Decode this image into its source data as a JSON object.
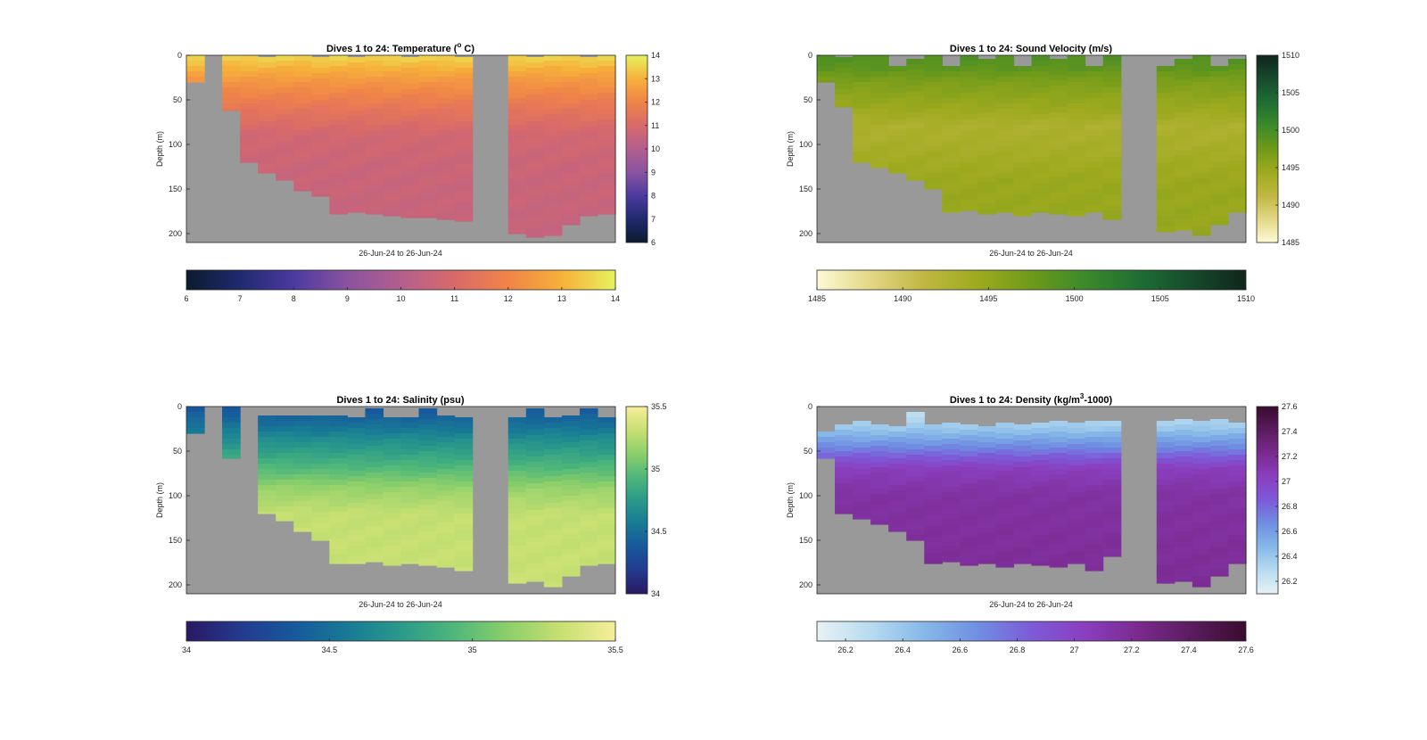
{
  "chart_data": [
    {
      "type": "heatmap",
      "title": "Dives 1 to 24: Temperature (",
      "title_sup": "o",
      "title_tail": " C)",
      "xlabel": "26-Jun-24 to 26-Jun-24",
      "ylabel": "Depth (m)",
      "ylim": [
        0,
        210
      ],
      "yticks": [
        "0",
        "50",
        "100",
        "150",
        "200"
      ],
      "colorbar_range": [
        6,
        14
      ],
      "colorbar_ticks": [
        "6",
        "7",
        "8",
        "9",
        "10",
        "11",
        "12",
        "13",
        "14"
      ],
      "colormap": [
        "#0b1b2d",
        "#1f2a6e",
        "#4b3aa0",
        "#8a53a0",
        "#b35f8e",
        "#d8696a",
        "#f08448",
        "#f7b03a",
        "#e6f25f"
      ],
      "missing_color": "#999999",
      "dives": 24,
      "max_depth_by_dive": [
        30,
        0,
        62,
        120,
        132,
        140,
        152,
        158,
        178,
        176,
        178,
        180,
        182,
        182,
        184,
        186,
        0,
        0,
        200,
        204,
        202,
        190,
        180,
        178
      ],
      "surface_gap_by_dive": [
        0,
        0,
        0,
        0,
        2,
        0,
        0,
        2,
        0,
        2,
        0,
        0,
        2,
        0,
        0,
        2,
        0,
        0,
        0,
        2,
        0,
        0,
        2,
        0
      ],
      "profile": [
        [
          0,
          13.6
        ],
        [
          10,
          13.2
        ],
        [
          30,
          12.4
        ],
        [
          60,
          11.5
        ],
        [
          90,
          10.8
        ],
        [
          130,
          10.6
        ],
        [
          205,
          10.5
        ]
      ]
    },
    {
      "type": "heatmap",
      "title": "Dives 1 to 24: Sound Velocity (m/s)",
      "xlabel": "26-Jun-24 to 26-Jun-24",
      "ylabel": "Depth (m)",
      "ylim": [
        0,
        210
      ],
      "yticks": [
        "0",
        "50",
        "100",
        "150",
        "200"
      ],
      "colorbar_range": [
        1485,
        1510
      ],
      "colorbar_ticks": [
        "1485",
        "1490",
        "1495",
        "1500",
        "1505",
        "1510"
      ],
      "colormap": [
        "#fdf9d6",
        "#e3d786",
        "#bfb741",
        "#9eaa1e",
        "#6e9a1a",
        "#3c8a2a",
        "#1f6e34",
        "#164a2c",
        "#0f261b"
      ],
      "missing_color": "#999999",
      "dives": 24,
      "max_depth_by_dive": [
        30,
        58,
        120,
        126,
        132,
        140,
        150,
        176,
        174,
        178,
        176,
        180,
        176,
        178,
        180,
        176,
        184,
        0,
        0,
        198,
        196,
        202,
        190,
        176
      ],
      "surface_gap_by_dive": [
        0,
        2,
        0,
        0,
        12,
        4,
        0,
        12,
        0,
        4,
        0,
        12,
        0,
        4,
        0,
        12,
        0,
        0,
        0,
        12,
        4,
        0,
        12,
        4
      ],
      "profile": [
        [
          0,
          1499.5
        ],
        [
          15,
          1498.5
        ],
        [
          30,
          1496.5
        ],
        [
          60,
          1494.5
        ],
        [
          80,
          1493.0
        ],
        [
          100,
          1493.4
        ],
        [
          140,
          1494.6
        ],
        [
          205,
          1495.0
        ]
      ]
    },
    {
      "type": "heatmap",
      "title": "Dives 1 to 24: Salinity (psu)",
      "xlabel": "26-Jun-24 to 26-Jun-24",
      "ylabel": "Depth (m)",
      "ylim": [
        0,
        210
      ],
      "yticks": [
        "0",
        "50",
        "100",
        "150",
        "200"
      ],
      "colorbar_range": [
        34,
        35.5
      ],
      "colorbar_ticks": [
        "34",
        "34.5",
        "35",
        "35.5"
      ],
      "colormap": [
        "#2a1862",
        "#233a8f",
        "#17589c",
        "#187a96",
        "#2a9a8a",
        "#4fb77a",
        "#8ccf6a",
        "#c8e072",
        "#f6ee9a"
      ],
      "missing_color": "#999999",
      "dives": 24,
      "max_depth_by_dive": [
        30,
        0,
        58,
        0,
        120,
        128,
        140,
        150,
        176,
        176,
        174,
        178,
        176,
        178,
        180,
        184,
        0,
        0,
        198,
        196,
        202,
        190,
        178,
        176
      ],
      "surface_gap_by_dive": [
        0,
        2,
        0,
        0,
        10,
        10,
        10,
        10,
        10,
        12,
        2,
        12,
        12,
        2,
        10,
        12,
        0,
        0,
        12,
        2,
        12,
        10,
        2,
        12
      ],
      "profile": [
        [
          0,
          34.35
        ],
        [
          20,
          34.5
        ],
        [
          40,
          34.7
        ],
        [
          70,
          34.95
        ],
        [
          90,
          35.15
        ],
        [
          120,
          35.3
        ],
        [
          205,
          35.32
        ]
      ]
    },
    {
      "type": "heatmap",
      "title": "Dives 1 to 24: Density (kg/m",
      "title_sup": "3",
      "title_tail": "-1000)",
      "xlabel": "26-Jun-24 to 26-Jun-24",
      "ylabel": "Depth (m)",
      "ylim": [
        0,
        210
      ],
      "yticks": [
        "0",
        "50",
        "100",
        "150",
        "200"
      ],
      "colorbar_range": [
        26.1,
        27.6
      ],
      "colorbar_ticks": [
        "26.2",
        "26.4",
        "26.6",
        "26.8",
        "27",
        "27.2",
        "27.4",
        "27.6"
      ],
      "colormap": [
        "#e8f2f5",
        "#b7dbef",
        "#86b8e8",
        "#6f8fe2",
        "#7d5ad8",
        "#8a3fbf",
        "#7a2a8e",
        "#5a1c5e",
        "#3a0c2e"
      ],
      "missing_color": "#999999",
      "dives": 24,
      "max_depth_by_dive": [
        58,
        120,
        126,
        132,
        140,
        150,
        176,
        174,
        178,
        176,
        180,
        176,
        178,
        180,
        176,
        184,
        168,
        0,
        0,
        198,
        196,
        202,
        190,
        176
      ],
      "surface_gap_by_dive": [
        28,
        20,
        16,
        20,
        22,
        6,
        20,
        18,
        20,
        22,
        18,
        20,
        18,
        16,
        18,
        16,
        16,
        0,
        0,
        16,
        14,
        16,
        14,
        18
      ],
      "profile": [
        [
          0,
          26.2
        ],
        [
          25,
          26.4
        ],
        [
          50,
          26.75
        ],
        [
          70,
          27.05
        ],
        [
          100,
          27.15
        ],
        [
          205,
          27.2
        ]
      ]
    }
  ]
}
